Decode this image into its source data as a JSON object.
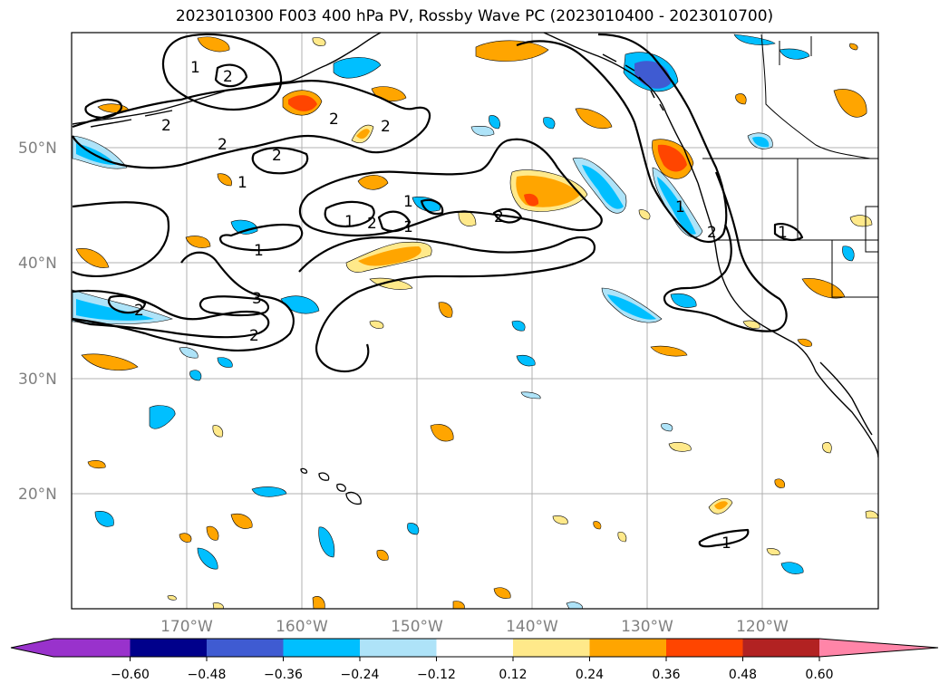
{
  "title": "2023010300 F003 400 hPa PV, Rossby Wave PC (2023010400 - 2023010700)",
  "map": {
    "lat_labels": [
      "50°N",
      "40°N",
      "30°N",
      "20°N"
    ],
    "lon_labels": [
      "170°W",
      "160°W",
      "150°W",
      "140°W",
      "130°W",
      "120°W"
    ],
    "extent": {
      "lon_min": -180,
      "lon_max": -110,
      "lat_min": 10,
      "lat_max": 60
    },
    "contour_levels": [
      "1",
      "2",
      "3"
    ]
  },
  "colorbar": {
    "ticks": [
      "−0.60",
      "−0.48",
      "−0.36",
      "−0.24",
      "−0.12",
      "0.12",
      "0.24",
      "0.36",
      "0.48",
      "0.60"
    ],
    "colors": [
      "#9932cc",
      "#00008b",
      "#3f5bd2",
      "#00bfff",
      "#aee3f8",
      "#ffffff",
      "#ffe98a",
      "#ffa500",
      "#ff4500",
      "#b22222",
      "#ff85a8"
    ],
    "under_color": "#9932cc",
    "over_color": "#ff85a8"
  }
}
